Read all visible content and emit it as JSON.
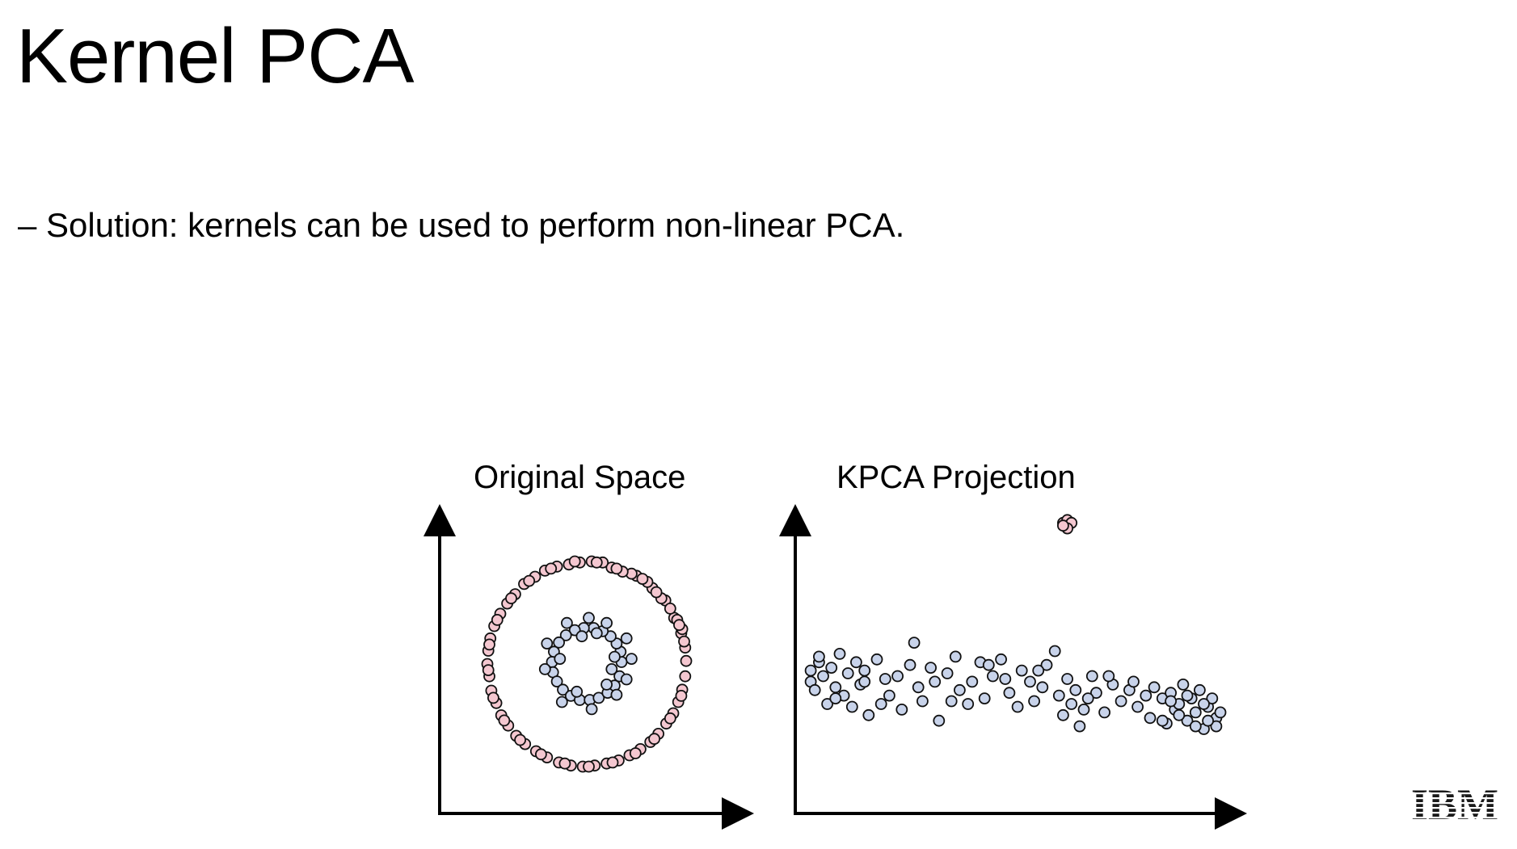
{
  "title": "Kernel PCA",
  "bullet": {
    "dash": "–",
    "text": "Solution: kernels can be used to perform non-linear PCA."
  },
  "chart_data": [
    {
      "type": "scatter",
      "title": "Original Space",
      "xlabel": "",
      "ylabel": "",
      "grid": false,
      "series": [
        {
          "color": "#f4c7d0",
          "points": [
            [
              0.99,
              0.16
            ],
            [
              0.95,
              0.3
            ],
            [
              0.96,
              0.34
            ],
            [
              0.88,
              0.45
            ],
            [
              0.91,
              0.43
            ],
            [
              0.79,
              0.62
            ],
            [
              0.75,
              0.64
            ],
            [
              0.66,
              0.74
            ],
            [
              0.61,
              0.8
            ],
            [
              0.5,
              0.86
            ],
            [
              0.45,
              0.88
            ],
            [
              0.36,
              0.9
            ],
            [
              0.25,
              0.94
            ],
            [
              0.16,
              0.99
            ],
            [
              0.05,
              1.0
            ],
            [
              -0.07,
              0.99
            ],
            [
              -0.18,
              0.97
            ],
            [
              -0.3,
              0.95
            ],
            [
              -0.42,
              0.91
            ],
            [
              -0.52,
              0.85
            ],
            [
              -0.63,
              0.78
            ],
            [
              -0.72,
              0.68
            ],
            [
              -0.8,
              0.59
            ],
            [
              -0.87,
              0.49
            ],
            [
              -0.93,
              0.37
            ],
            [
              -0.97,
              0.25
            ],
            [
              -0.99,
              0.13
            ],
            [
              -1.0,
              0.0
            ],
            [
              -0.98,
              -0.12
            ],
            [
              -0.96,
              -0.26
            ],
            [
              -0.91,
              -0.38
            ],
            [
              -0.86,
              -0.5
            ],
            [
              -0.79,
              -0.6
            ],
            [
              -0.71,
              -0.7
            ],
            [
              -0.62,
              -0.78
            ],
            [
              -0.51,
              -0.85
            ],
            [
              -0.4,
              -0.91
            ],
            [
              -0.28,
              -0.96
            ],
            [
              -0.16,
              -0.99
            ],
            [
              -0.04,
              -1.0
            ],
            [
              0.08,
              -0.99
            ],
            [
              0.2,
              -0.97
            ],
            [
              0.32,
              -0.94
            ],
            [
              0.43,
              -0.89
            ],
            [
              0.54,
              -0.83
            ],
            [
              0.64,
              -0.76
            ],
            [
              0.72,
              -0.68
            ],
            [
              0.8,
              -0.58
            ],
            [
              0.87,
              -0.48
            ],
            [
              0.92,
              -0.37
            ],
            [
              0.96,
              -0.25
            ],
            [
              0.99,
              -0.12
            ],
            [
              1.0,
              0.03
            ],
            [
              0.98,
              0.22
            ],
            [
              0.93,
              0.38
            ],
            [
              0.84,
              0.54
            ],
            [
              0.7,
              0.7
            ],
            [
              0.56,
              0.83
            ],
            [
              0.3,
              0.93
            ],
            [
              0.1,
              0.99
            ],
            [
              -0.12,
              1.0
            ],
            [
              -0.36,
              0.93
            ],
            [
              -0.58,
              0.81
            ],
            [
              -0.76,
              0.64
            ],
            [
              -0.9,
              0.43
            ],
            [
              -0.98,
              0.19
            ],
            [
              -0.99,
              -0.06
            ],
            [
              -0.94,
              -0.33
            ],
            [
              -0.83,
              -0.55
            ],
            [
              -0.67,
              -0.74
            ],
            [
              -0.46,
              -0.88
            ],
            [
              -0.22,
              -0.97
            ],
            [
              0.02,
              -1.0
            ],
            [
              0.26,
              -0.96
            ],
            [
              0.49,
              -0.87
            ],
            [
              0.68,
              -0.73
            ],
            [
              0.84,
              -0.53
            ],
            [
              0.95,
              -0.31
            ]
          ]
        },
        {
          "color": "#c8d3ea",
          "points": [
            [
              0.35,
              0.02
            ],
            [
              0.34,
              0.12
            ],
            [
              0.3,
              0.2
            ],
            [
              0.24,
              0.27
            ],
            [
              0.16,
              0.32
            ],
            [
              0.07,
              0.35
            ],
            [
              -0.03,
              0.35
            ],
            [
              -0.12,
              0.33
            ],
            [
              -0.21,
              0.28
            ],
            [
              -0.28,
              0.21
            ],
            [
              -0.33,
              0.12
            ],
            [
              -0.35,
              0.02
            ],
            [
              -0.34,
              -0.08
            ],
            [
              -0.3,
              -0.17
            ],
            [
              -0.24,
              -0.25
            ],
            [
              -0.16,
              -0.31
            ],
            [
              -0.07,
              -0.35
            ],
            [
              0.03,
              -0.35
            ],
            [
              0.12,
              -0.33
            ],
            [
              0.21,
              -0.28
            ],
            [
              0.28,
              -0.21
            ],
            [
              0.33,
              -0.12
            ],
            [
              0.02,
              0.45
            ],
            [
              0.4,
              0.25
            ],
            [
              0.45,
              0.05
            ],
            [
              0.4,
              -0.15
            ],
            [
              -0.4,
              0.2
            ],
            [
              -0.42,
              -0.05
            ],
            [
              -0.25,
              -0.37
            ],
            [
              0.05,
              -0.44
            ],
            [
              0.3,
              -0.3
            ],
            [
              0.2,
              0.4
            ],
            [
              -0.2,
              0.4
            ],
            [
              0.28,
              0.07
            ],
            [
              -0.27,
              0.05
            ],
            [
              0.25,
              -0.05
            ],
            [
              0.1,
              0.3
            ],
            [
              -0.1,
              -0.27
            ],
            [
              0.2,
              -0.2
            ],
            [
              -0.05,
              0.27
            ]
          ]
        }
      ]
    },
    {
      "type": "scatter",
      "title": "KPCA Projection",
      "xlabel": "",
      "ylabel": "",
      "grid": false,
      "series": [
        {
          "color": "#f4c7d0",
          "points": [
            [
              0.62,
              0.95
            ],
            [
              0.63,
              0.96
            ],
            [
              0.64,
              0.95
            ],
            [
              0.63,
              0.93
            ],
            [
              0.62,
              0.94
            ]
          ]
        },
        {
          "color": "#c8d3ea",
          "points": [
            [
              0.01,
              0.42
            ],
            [
              0.01,
              0.38
            ],
            [
              0.02,
              0.35
            ],
            [
              0.03,
              0.45
            ],
            [
              0.04,
              0.4
            ],
            [
              0.05,
              0.3
            ],
            [
              0.06,
              0.43
            ],
            [
              0.07,
              0.36
            ],
            [
              0.08,
              0.48
            ],
            [
              0.09,
              0.33
            ],
            [
              0.1,
              0.41
            ],
            [
              0.11,
              0.29
            ],
            [
              0.12,
              0.45
            ],
            [
              0.13,
              0.37
            ],
            [
              0.14,
              0.42
            ],
            [
              0.15,
              0.26
            ],
            [
              0.17,
              0.46
            ],
            [
              0.19,
              0.39
            ],
            [
              0.2,
              0.33
            ],
            [
              0.22,
              0.4
            ],
            [
              0.23,
              0.28
            ],
            [
              0.25,
              0.44
            ],
            [
              0.26,
              0.52
            ],
            [
              0.27,
              0.36
            ],
            [
              0.28,
              0.31
            ],
            [
              0.3,
              0.43
            ],
            [
              0.32,
              0.24
            ],
            [
              0.34,
              0.41
            ],
            [
              0.36,
              0.47
            ],
            [
              0.37,
              0.35
            ],
            [
              0.39,
              0.3
            ],
            [
              0.4,
              0.38
            ],
            [
              0.42,
              0.45
            ],
            [
              0.43,
              0.32
            ],
            [
              0.45,
              0.4
            ],
            [
              0.47,
              0.46
            ],
            [
              0.49,
              0.34
            ],
            [
              0.51,
              0.29
            ],
            [
              0.52,
              0.42
            ],
            [
              0.54,
              0.38
            ],
            [
              0.55,
              0.31
            ],
            [
              0.57,
              0.36
            ],
            [
              0.58,
              0.44
            ],
            [
              0.6,
              0.49
            ],
            [
              0.61,
              0.33
            ],
            [
              0.62,
              0.26
            ],
            [
              0.63,
              0.39
            ],
            [
              0.64,
              0.3
            ],
            [
              0.65,
              0.35
            ],
            [
              0.66,
              0.22
            ],
            [
              0.67,
              0.28
            ],
            [
              0.69,
              0.4
            ],
            [
              0.7,
              0.34
            ],
            [
              0.72,
              0.27
            ],
            [
              0.74,
              0.37
            ],
            [
              0.76,
              0.31
            ],
            [
              0.78,
              0.35
            ],
            [
              0.8,
              0.29
            ],
            [
              0.82,
              0.33
            ],
            [
              0.83,
              0.25
            ],
            [
              0.84,
              0.36
            ],
            [
              0.86,
              0.32
            ],
            [
              0.87,
              0.23
            ],
            [
              0.88,
              0.34
            ],
            [
              0.89,
              0.28
            ],
            [
              0.9,
              0.3
            ],
            [
              0.91,
              0.37
            ],
            [
              0.92,
              0.24
            ],
            [
              0.93,
              0.32
            ],
            [
              0.94,
              0.27
            ],
            [
              0.95,
              0.35
            ],
            [
              0.96,
              0.21
            ],
            [
              0.97,
              0.29
            ],
            [
              0.98,
              0.32
            ],
            [
              0.99,
              0.25
            ],
            [
              1.0,
              0.27
            ],
            [
              0.99,
              0.22
            ],
            [
              0.97,
              0.24
            ],
            [
              0.96,
              0.3
            ],
            [
              0.94,
              0.22
            ],
            [
              0.92,
              0.33
            ],
            [
              0.9,
              0.26
            ],
            [
              0.88,
              0.31
            ],
            [
              0.86,
              0.24
            ],
            [
              0.03,
              0.47
            ],
            [
              0.07,
              0.32
            ],
            [
              0.14,
              0.38
            ],
            [
              0.18,
              0.3
            ],
            [
              0.31,
              0.38
            ],
            [
              0.35,
              0.31
            ],
            [
              0.44,
              0.44
            ],
            [
              0.48,
              0.39
            ],
            [
              0.56,
              0.42
            ],
            [
              0.68,
              0.32
            ],
            [
              0.73,
              0.4
            ],
            [
              0.79,
              0.38
            ]
          ]
        }
      ]
    }
  ],
  "logo": {
    "text": "IBM",
    "color": "#1a1a1a"
  }
}
